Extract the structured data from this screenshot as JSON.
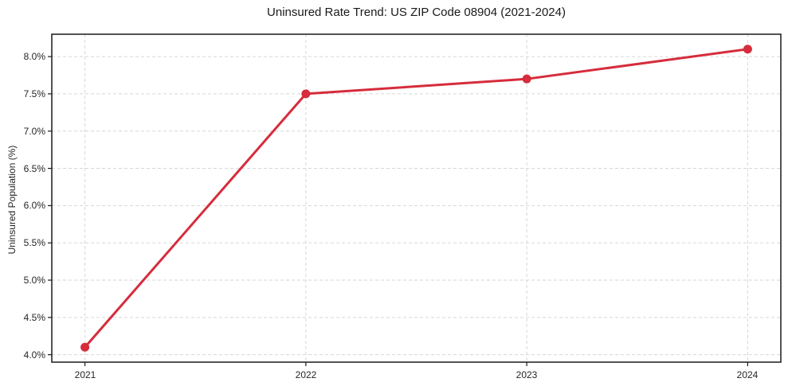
{
  "chart_data": {
    "type": "line",
    "title": "Uninsured Rate Trend: US ZIP Code 08904 (2021-2024)",
    "xlabel": "",
    "ylabel": "Uninsured Population (%)",
    "x": [
      2021,
      2022,
      2023,
      2024
    ],
    "values": [
      4.1,
      7.5,
      7.7,
      8.1
    ],
    "xlim": [
      2020.85,
      2024.15
    ],
    "ylim": [
      3.9,
      8.3
    ],
    "xticks": {
      "values": [
        2021,
        2022,
        2023,
        2024
      ],
      "labels": [
        "2021",
        "2022",
        "2023",
        "2024"
      ]
    },
    "yticks": {
      "values": [
        4.0,
        4.5,
        5.0,
        5.5,
        6.0,
        6.5,
        7.0,
        7.5,
        8.0
      ],
      "labels": [
        "4.0%",
        "4.5%",
        "5.0%",
        "5.5%",
        "6.0%",
        "6.5%",
        "7.0%",
        "7.5%",
        "8.0%"
      ]
    },
    "grid": true,
    "grid_style": "dashed",
    "legend": "none",
    "marker": "circle",
    "colors": {
      "line": "#d62c3c",
      "marker": "#d62c3c",
      "grid": "#d6d6d6",
      "axis": "#1a1a1a",
      "text": "#262626",
      "background": "#ffffff"
    }
  }
}
